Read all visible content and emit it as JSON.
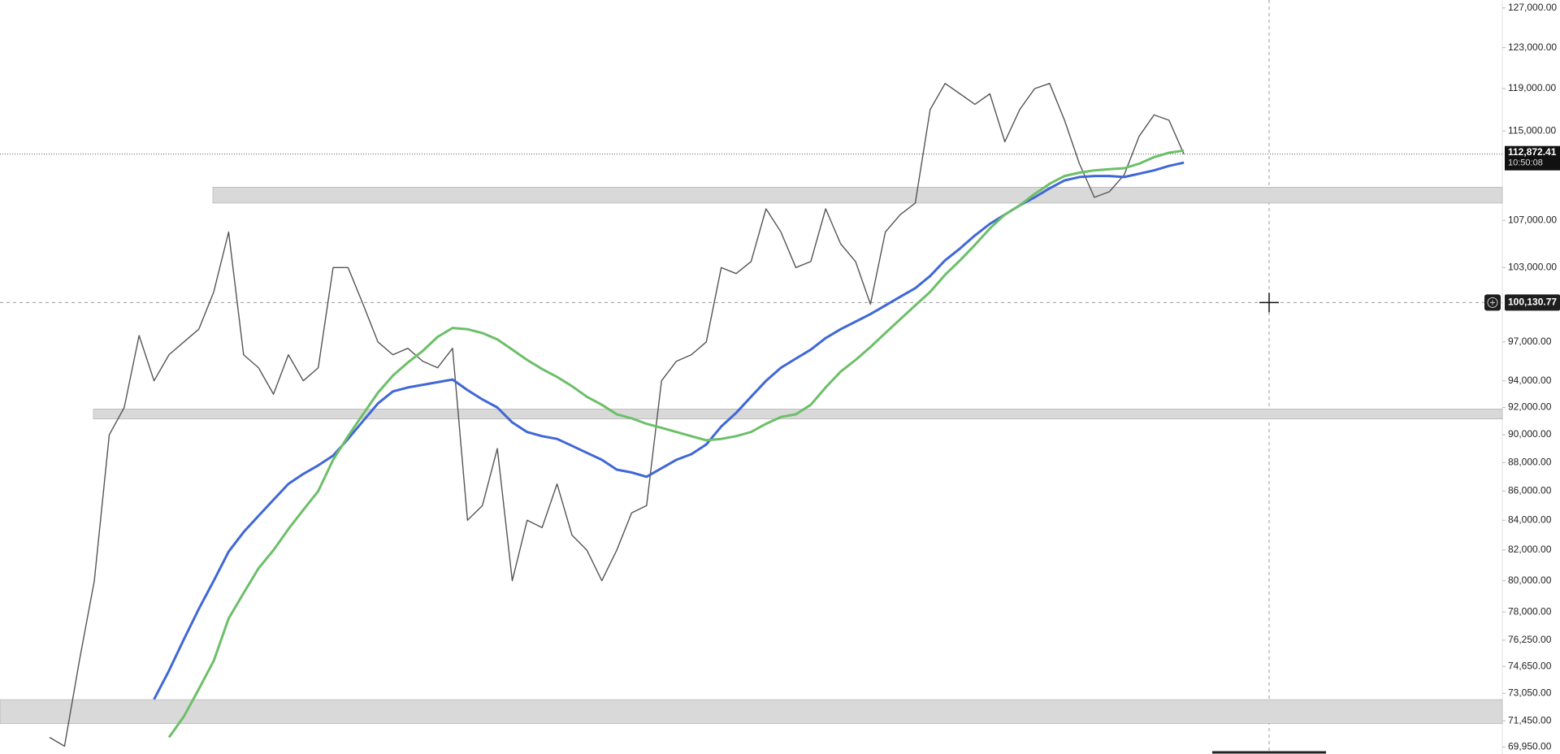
{
  "chart_data": {
    "type": "line",
    "log_scale": true,
    "ylim": [
      69560,
      127820
    ],
    "yticks": [
      {
        "value": 127000,
        "label": "127,000.00"
      },
      {
        "value": 123000,
        "label": "123,000.00"
      },
      {
        "value": 119000,
        "label": "119,000.00"
      },
      {
        "value": 115000,
        "label": "115,000.00"
      },
      {
        "value": 107000,
        "label": "107,000.00"
      },
      {
        "value": 103000,
        "label": "103,000.00"
      },
      {
        "value": 97000,
        "label": "97,000.00"
      },
      {
        "value": 94000,
        "label": "94,000.00"
      },
      {
        "value": 92000,
        "label": "92,000.00"
      },
      {
        "value": 90000,
        "label": "90,000.00"
      },
      {
        "value": 88000,
        "label": "88,000.00"
      },
      {
        "value": 86000,
        "label": "86,000.00"
      },
      {
        "value": 84000,
        "label": "84,000.00"
      },
      {
        "value": 82000,
        "label": "82,000.00"
      },
      {
        "value": 80000,
        "label": "80,000.00"
      },
      {
        "value": 78000,
        "label": "78,000.00"
      },
      {
        "value": 76250,
        "label": "76,250.00"
      },
      {
        "value": 74650,
        "label": "74,650.00"
      },
      {
        "value": 73050,
        "label": "73,050.00"
      },
      {
        "value": 71450,
        "label": "71,450.00"
      },
      {
        "value": 69950,
        "label": "69,950.00"
      }
    ],
    "series": [
      {
        "color": "#555555",
        "values": [
          70500,
          70000,
          75000,
          80000,
          90000,
          92000,
          97500,
          94000,
          96000,
          97000,
          98000,
          101000,
          106000,
          96000,
          95000,
          93000,
          96000,
          94000,
          95000,
          103000,
          103000,
          100000,
          97000,
          96000,
          96500,
          95500,
          95000,
          96500,
          84000,
          85000,
          89000,
          80000,
          84000,
          83500,
          86500,
          83000,
          82000,
          80000,
          82000,
          84500,
          85000,
          94000,
          95500,
          96000,
          97000,
          103000,
          102500,
          103500,
          108000,
          106000,
          103000,
          103500,
          108000,
          105000,
          103500,
          100000,
          106000,
          107500,
          108500,
          117000,
          119500,
          118500,
          117500,
          118500,
          114000,
          117000,
          119000,
          119500,
          116000,
          112000,
          109000,
          109500,
          111000,
          114500,
          116500,
          116000,
          112872.41
        ]
      },
      {
        "color": "#3f67d6",
        "values": [
          null,
          null,
          null,
          null,
          null,
          null,
          null,
          72700,
          74400,
          76300,
          78200,
          80000,
          81900,
          83200,
          84300,
          85400,
          86500,
          87200,
          87800,
          88500,
          89700,
          91000,
          92300,
          93200,
          93500,
          93700,
          93900,
          94100,
          93300,
          92600,
          92000,
          90900,
          90200,
          89900,
          89700,
          89200,
          88700,
          88200,
          87500,
          87300,
          87000,
          87600,
          88200,
          88600,
          89300,
          90600,
          91600,
          92800,
          94000,
          95000,
          95700,
          96400,
          97300,
          98000,
          98600,
          99200,
          99900,
          100600,
          101300,
          102300,
          103600,
          104600,
          105700,
          106700,
          107500,
          108300,
          109000,
          109800,
          110500,
          110800,
          110900,
          110900,
          110800,
          111100,
          111400,
          111800,
          112100
        ]
      },
      {
        "color": "#6cbf68",
        "values": [
          null,
          null,
          null,
          null,
          null,
          null,
          null,
          null,
          70500,
          71700,
          73300,
          75000,
          77600,
          79200,
          80800,
          82000,
          83400,
          84700,
          86000,
          88200,
          89900,
          91500,
          93100,
          94400,
          95400,
          96300,
          97400,
          98100,
          98000,
          97700,
          97200,
          96400,
          95600,
          94900,
          94300,
          93600,
          92800,
          92200,
          91500,
          91200,
          90800,
          90500,
          90200,
          89900,
          89600,
          89700,
          89900,
          90200,
          90800,
          91300,
          91500,
          92200,
          93500,
          94700,
          95600,
          96600,
          97700,
          98800,
          99900,
          101000,
          102400,
          103600,
          104900,
          106300,
          107500,
          108300,
          109300,
          110200,
          110900,
          111200,
          111400,
          111500,
          111600,
          112000,
          112600,
          113000,
          113200
        ]
      }
    ],
    "zones": [
      {
        "from": 108500,
        "to": 109900,
        "color": "#d9d9d9"
      },
      {
        "from": 91150,
        "to": 91890,
        "color": "#d9d9d9"
      },
      {
        "from": 71290,
        "to": 72680,
        "color": "#d9d9d9"
      }
    ],
    "last_price": {
      "value": 112872.41,
      "label": "112,872.41"
    },
    "countdown": "10:50:08",
    "crosshair": {
      "value": 100130.77,
      "label": "100,130.77"
    }
  }
}
